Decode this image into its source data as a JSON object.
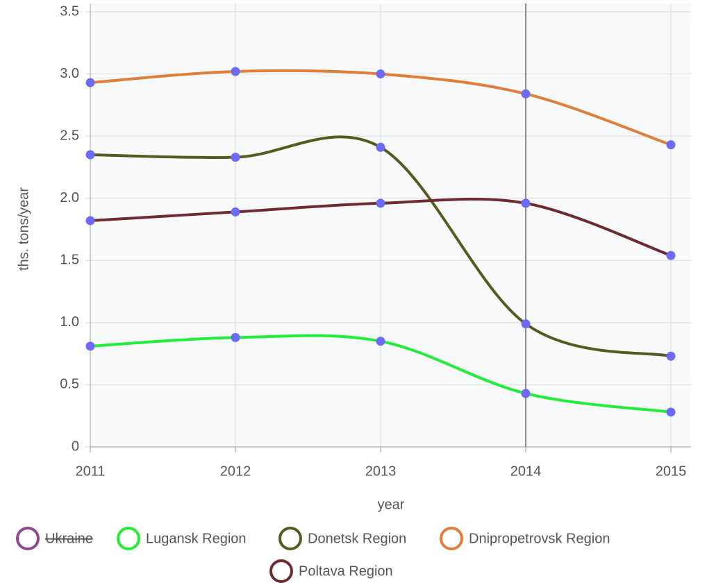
{
  "chart_data": {
    "type": "line",
    "x_label": "year",
    "y_label": "ths. tons/year",
    "categories": [
      "2011",
      "2012",
      "2013",
      "2014",
      "2015"
    ],
    "series": [
      {
        "name": "Ukraine",
        "color": "#8e4a86",
        "hidden": true,
        "values": [
          null,
          null,
          null,
          null,
          null
        ]
      },
      {
        "name": "Lugansk Region",
        "color": "#22ee3a",
        "values": [
          0.81,
          0.88,
          0.85,
          0.43,
          0.28
        ]
      },
      {
        "name": "Donetsk Region",
        "color": "#565a1e",
        "values": [
          2.35,
          2.33,
          2.41,
          0.99,
          0.73
        ]
      },
      {
        "name": "Dnipropetrovsk Region",
        "color": "#e07f3c",
        "values": [
          2.93,
          3.02,
          3.0,
          2.84,
          2.43
        ]
      },
      {
        "name": "Poltava Region",
        "color": "#6e2b32",
        "values": [
          1.82,
          1.89,
          1.96,
          1.96,
          1.54
        ]
      }
    ],
    "point_color": "#6b6bf5",
    "ylim": [
      0,
      3.5
    ],
    "yticks": [
      0,
      0.5,
      {
        "value": 1,
        "label": "1.0"
      },
      1.5,
      {
        "value": 2,
        "label": "2.0"
      },
      2.5,
      {
        "value": 3,
        "label": "3.0"
      },
      3.5
    ],
    "grid": true,
    "smooth": true,
    "legend": "bottom"
  }
}
